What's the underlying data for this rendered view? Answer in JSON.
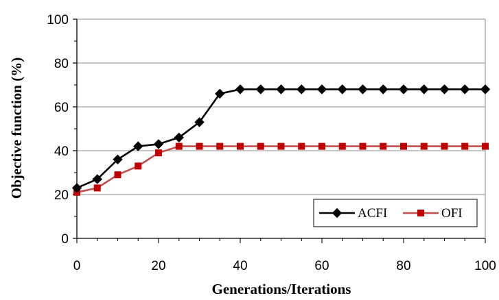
{
  "chart_data": {
    "type": "line",
    "title": "",
    "xlabel": "Generations/Iterations",
    "ylabel": "Objective function (%)",
    "xlim": [
      0,
      100
    ],
    "ylim": [
      0,
      100
    ],
    "x_ticks": [
      0,
      20,
      40,
      60,
      80,
      100
    ],
    "y_ticks": [
      0,
      20,
      40,
      60,
      80,
      100
    ],
    "grid": "horizontal major",
    "legend_position": "bottom-right",
    "x": [
      0,
      5,
      10,
      15,
      20,
      25,
      30,
      35,
      40,
      45,
      50,
      55,
      60,
      65,
      70,
      75,
      80,
      85,
      90,
      95,
      100
    ],
    "series": [
      {
        "name": "ACFI",
        "color": "#000000",
        "marker": "diamond",
        "values": [
          23,
          27,
          36,
          42,
          43,
          46,
          53,
          66,
          68,
          68,
          68,
          68,
          68,
          68,
          68,
          68,
          68,
          68,
          68,
          68,
          68
        ]
      },
      {
        "name": "OFI",
        "color": "#c0504d",
        "marker_color": "#c00000",
        "marker": "square",
        "values": [
          21,
          23,
          29,
          33,
          39,
          42,
          42,
          42,
          42,
          42,
          42,
          42,
          42,
          42,
          42,
          42,
          42,
          42,
          42,
          42,
          42
        ]
      }
    ]
  }
}
